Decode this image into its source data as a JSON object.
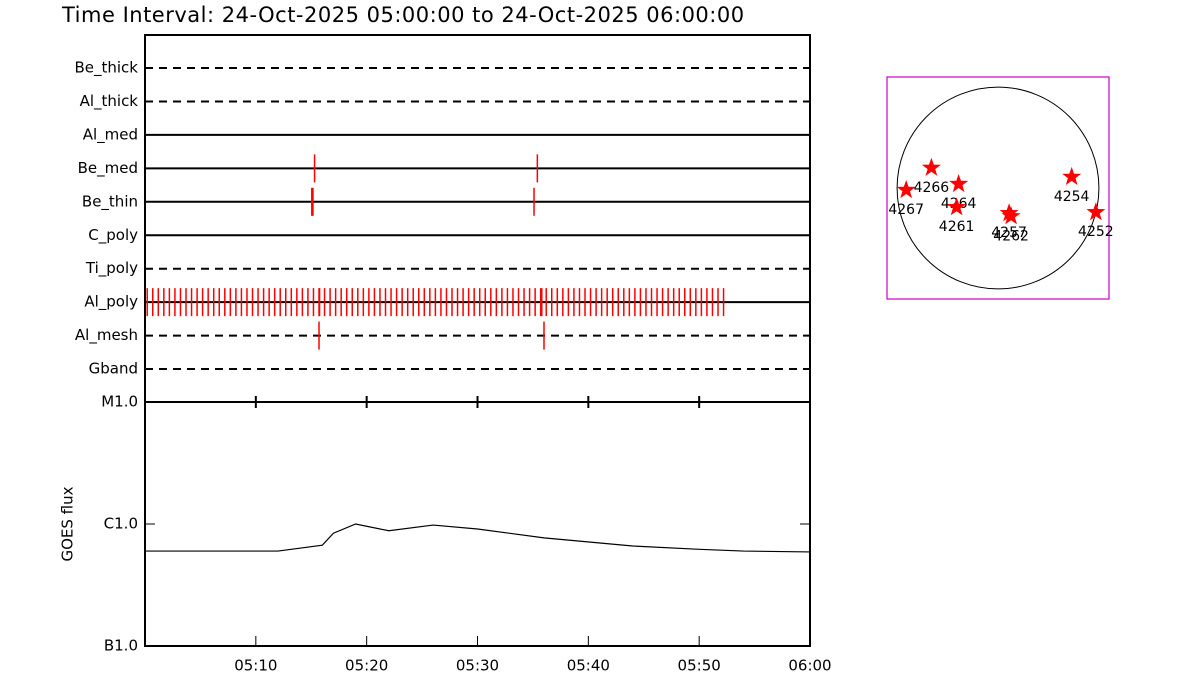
{
  "chart_data": [
    {
      "type": "timeline",
      "title": "Time Interval: 24-Oct-2025 05:00:00 to 24-Oct-2025 06:00:00",
      "xlim": [
        0,
        60
      ],
      "line_color": "#000000",
      "series": [
        {
          "name": "Be_thick",
          "style": "dashed",
          "color": "#ff0000",
          "values": []
        },
        {
          "name": "Al_thick",
          "style": "dashed",
          "color": "#ff0000",
          "values": []
        },
        {
          "name": "Al_med",
          "style": "solid",
          "color": "#ff0000",
          "values": []
        },
        {
          "name": "Be_med",
          "style": "solid",
          "color": "#ff0000",
          "values": [
            15.3,
            35.4
          ]
        },
        {
          "name": "Be_thin",
          "style": "solid",
          "color": "#ff0000",
          "values": [
            15.05,
            15.15,
            35.1
          ]
        },
        {
          "name": "C_poly",
          "style": "solid",
          "color": "#ff0000",
          "values": []
        },
        {
          "name": "Ti_poly",
          "style": "dashed",
          "color": "#ff0000",
          "values": []
        },
        {
          "name": "Al_poly",
          "style": "solid",
          "color": "#ff0000",
          "values": [
            0.2,
            0.7,
            1.2,
            1.7,
            2.2,
            2.7,
            3.2,
            3.7,
            4.2,
            4.7,
            5.2,
            5.7,
            6.2,
            6.7,
            7.2,
            7.7,
            8.2,
            8.7,
            9.2,
            9.7,
            10.2,
            10.7,
            11.2,
            11.7,
            12.2,
            12.7,
            13.2,
            13.7,
            14.2,
            14.7,
            15.2,
            15.7,
            16.2,
            16.7,
            17.2,
            17.7,
            18.2,
            18.7,
            19.2,
            19.7,
            20.2,
            20.7,
            21.2,
            21.7,
            22.2,
            22.7,
            23.2,
            23.7,
            24.2,
            24.7,
            25.2,
            25.7,
            26.2,
            26.7,
            27.2,
            27.7,
            28.2,
            28.7,
            29.2,
            29.7,
            30.2,
            30.7,
            31.2,
            31.7,
            32.2,
            32.7,
            33.2,
            33.7,
            34.2,
            34.7,
            35.2,
            35.7,
            36.2,
            36.7,
            37.2,
            37.7,
            38.2,
            38.7,
            39.2,
            39.7,
            40.2,
            40.7,
            41.2,
            41.7,
            42.2,
            42.7,
            43.2,
            43.7,
            44.2,
            44.7,
            45.2,
            45.7,
            46.2,
            46.7,
            47.2,
            47.7,
            48.2,
            48.7,
            49.2,
            49.7,
            50.2,
            50.7,
            51.2,
            51.7,
            52.2,
            15.75,
            35.8
          ]
        },
        {
          "name": "Al_mesh",
          "style": "dashed",
          "color": "#ff0000",
          "values": [
            15.7,
            36.0
          ]
        },
        {
          "name": "Gband",
          "style": "dashed",
          "color": "#ff0000",
          "values": []
        }
      ]
    },
    {
      "type": "line",
      "log_y": true,
      "ylabel": "GOES flux",
      "color": "#000000",
      "x": [
        0,
        12,
        16,
        17,
        19,
        22,
        26,
        30,
        36,
        44,
        50,
        54,
        60
      ],
      "values": [
        6e-07,
        6e-07,
        6.7e-07,
        8.4e-07,
        1e-06,
        8.8e-07,
        9.8e-07,
        9.1e-07,
        7.7e-07,
        6.6e-07,
        6.2e-07,
        6e-07,
        5.9e-07
      ],
      "xlim": [
        0,
        60
      ],
      "xticks": [
        {
          "value": 10,
          "label": "05:10"
        },
        {
          "value": 20,
          "label": "05:20"
        },
        {
          "value": 30,
          "label": "05:30"
        },
        {
          "value": 40,
          "label": "05:40"
        },
        {
          "value": 50,
          "label": "05:50"
        },
        {
          "value": 60,
          "label": "06:00"
        }
      ],
      "ylim": [
        1e-07,
        1e-05
      ],
      "yticks": [
        {
          "value": 1e-05,
          "label": "M1.0"
        },
        {
          "value": 1e-06,
          "label": "C1.0"
        },
        {
          "value": 1e-07,
          "label": "B1.0"
        }
      ]
    },
    {
      "type": "map",
      "border_color": "#cc00cc",
      "color": "#ff0000",
      "xlim": [
        -1.1,
        1.1
      ],
      "ylim": [
        -1.1,
        1.1
      ],
      "regions": [
        {
          "label": "4267",
          "x": -0.91,
          "y": -0.02
        },
        {
          "label": "4266",
          "x": -0.66,
          "y": 0.2
        },
        {
          "label": "4264",
          "x": -0.39,
          "y": 0.04
        },
        {
          "label": "4261",
          "x": -0.41,
          "y": -0.19
        },
        {
          "label": "4257",
          "x": 0.11,
          "y": -0.25
        },
        {
          "label": "4262",
          "x": 0.13,
          "y": -0.28
        },
        {
          "label": "4254",
          "x": 0.73,
          "y": 0.11
        },
        {
          "label": "4252",
          "x": 0.97,
          "y": -0.24
        }
      ]
    }
  ]
}
